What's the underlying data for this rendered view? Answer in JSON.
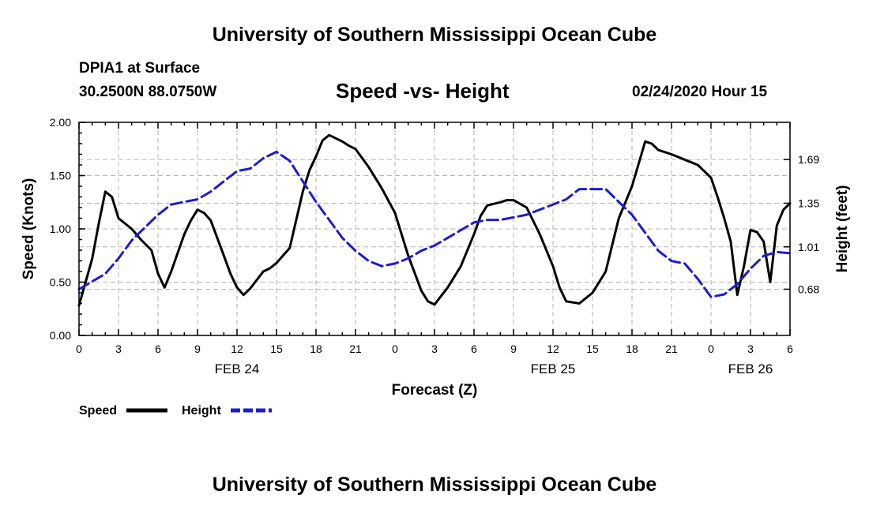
{
  "header": {
    "title": "University of Southern Mississippi Ocean Cube",
    "station": "DPIA1 at Surface",
    "coords": "30.2500N 88.0750W",
    "datetime": "02/24/2020 Hour 15"
  },
  "footer": {
    "title": "University of Southern Mississippi Ocean Cube"
  },
  "chart_data": {
    "type": "line",
    "title": "Speed -vs- Height",
    "xlabel": "Forecast (Z)",
    "ylabel": "Speed (Knots)",
    "y2label": "Height (feet)",
    "xlim": [
      0,
      54
    ],
    "ylim": [
      0,
      2.0
    ],
    "y2lim": [
      0.32,
      1.98
    ],
    "grid": true,
    "x_ticks": [
      0,
      3,
      6,
      9,
      12,
      15,
      18,
      21,
      24,
      27,
      30,
      33,
      36,
      39,
      42,
      45,
      48,
      51,
      54
    ],
    "x_tick_labels": [
      "0",
      "3",
      "6",
      "9",
      "12",
      "15",
      "18",
      "21",
      "0",
      "3",
      "6",
      "9",
      "12",
      "15",
      "18",
      "21",
      "0",
      "3",
      "6"
    ],
    "date_labels": [
      {
        "x": 12,
        "label": "FEB 24"
      },
      {
        "x": 36,
        "label": "FEB 25"
      },
      {
        "x": 51,
        "label": "FEB 26"
      }
    ],
    "y_ticks": [
      0.0,
      0.5,
      1.0,
      1.5,
      2.0
    ],
    "y_tick_labels": [
      "0.00",
      "0.50",
      "1.00",
      "1.50",
      "2.00"
    ],
    "y2_ticks": [
      0.68,
      1.01,
      1.35,
      1.69
    ],
    "y2_tick_labels": [
      "0.68",
      "1.01",
      "1.35",
      "1.69"
    ],
    "series": [
      {
        "name": "Speed",
        "color": "#000000",
        "axis": "left",
        "dash": "solid",
        "x": [
          0,
          0.5,
          1,
          1.5,
          2,
          2.5,
          3,
          4,
          4.7,
          5.5,
          6,
          6.5,
          7,
          8,
          8.5,
          9,
          9.5,
          10,
          11,
          11.5,
          12,
          12.5,
          13,
          14,
          14.5,
          15,
          16,
          17,
          17.5,
          18,
          18.5,
          19,
          20,
          20.5,
          21,
          22,
          23,
          24,
          25,
          26,
          26.5,
          27,
          28,
          29,
          30,
          30.5,
          31,
          32,
          32.5,
          33,
          34,
          35,
          36,
          36.5,
          37,
          38,
          39,
          40,
          41,
          42,
          43,
          43.5,
          44,
          45,
          46,
          47,
          48,
          48.5,
          49,
          49.5,
          50,
          50.5,
          51,
          51.5,
          52,
          52.5,
          53,
          53.5,
          54
        ],
        "values": [
          0.28,
          0.5,
          0.72,
          1.05,
          1.35,
          1.3,
          1.1,
          1.0,
          0.9,
          0.8,
          0.58,
          0.45,
          0.6,
          0.95,
          1.08,
          1.18,
          1.15,
          1.08,
          0.75,
          0.58,
          0.45,
          0.38,
          0.44,
          0.6,
          0.63,
          0.68,
          0.82,
          1.35,
          1.55,
          1.68,
          1.83,
          1.88,
          1.82,
          1.78,
          1.75,
          1.58,
          1.38,
          1.15,
          0.75,
          0.42,
          0.32,
          0.29,
          0.45,
          0.65,
          0.95,
          1.12,
          1.22,
          1.25,
          1.27,
          1.27,
          1.2,
          0.95,
          0.65,
          0.45,
          0.32,
          0.3,
          0.4,
          0.6,
          1.1,
          1.4,
          1.82,
          1.8,
          1.74,
          1.7,
          1.65,
          1.6,
          1.48,
          1.3,
          1.1,
          0.88,
          0.38,
          0.65,
          0.99,
          0.97,
          0.88,
          0.5,
          1.03,
          1.18,
          1.24
        ]
      },
      {
        "name": "Height",
        "color": "#1c1cd4",
        "axis": "right",
        "dash": "dashed",
        "x": [
          0,
          1,
          2,
          3,
          4,
          5,
          6,
          7,
          8,
          9,
          10,
          11,
          12,
          13,
          14,
          15,
          16,
          17,
          18,
          19,
          20,
          21,
          22,
          23,
          24,
          25,
          26,
          27,
          28,
          29,
          30,
          31,
          32,
          33,
          34,
          35,
          36,
          37,
          38,
          39,
          40,
          41,
          42,
          43,
          44,
          45,
          46,
          47,
          48,
          49,
          50,
          51,
          52,
          53,
          54
        ],
        "values": [
          0.68,
          0.74,
          0.8,
          0.92,
          1.06,
          1.16,
          1.26,
          1.34,
          1.36,
          1.38,
          1.44,
          1.52,
          1.6,
          1.62,
          1.7,
          1.75,
          1.68,
          1.52,
          1.36,
          1.22,
          1.08,
          0.98,
          0.9,
          0.86,
          0.88,
          0.92,
          0.98,
          1.02,
          1.08,
          1.14,
          1.2,
          1.22,
          1.22,
          1.24,
          1.26,
          1.3,
          1.34,
          1.38,
          1.46,
          1.46,
          1.46,
          1.36,
          1.26,
          1.12,
          0.98,
          0.9,
          0.88,
          0.76,
          0.62,
          0.64,
          0.72,
          0.84,
          0.94,
          0.97,
          0.96
        ]
      }
    ]
  },
  "legend": {
    "speed_label": "Speed",
    "height_label": "Height"
  }
}
